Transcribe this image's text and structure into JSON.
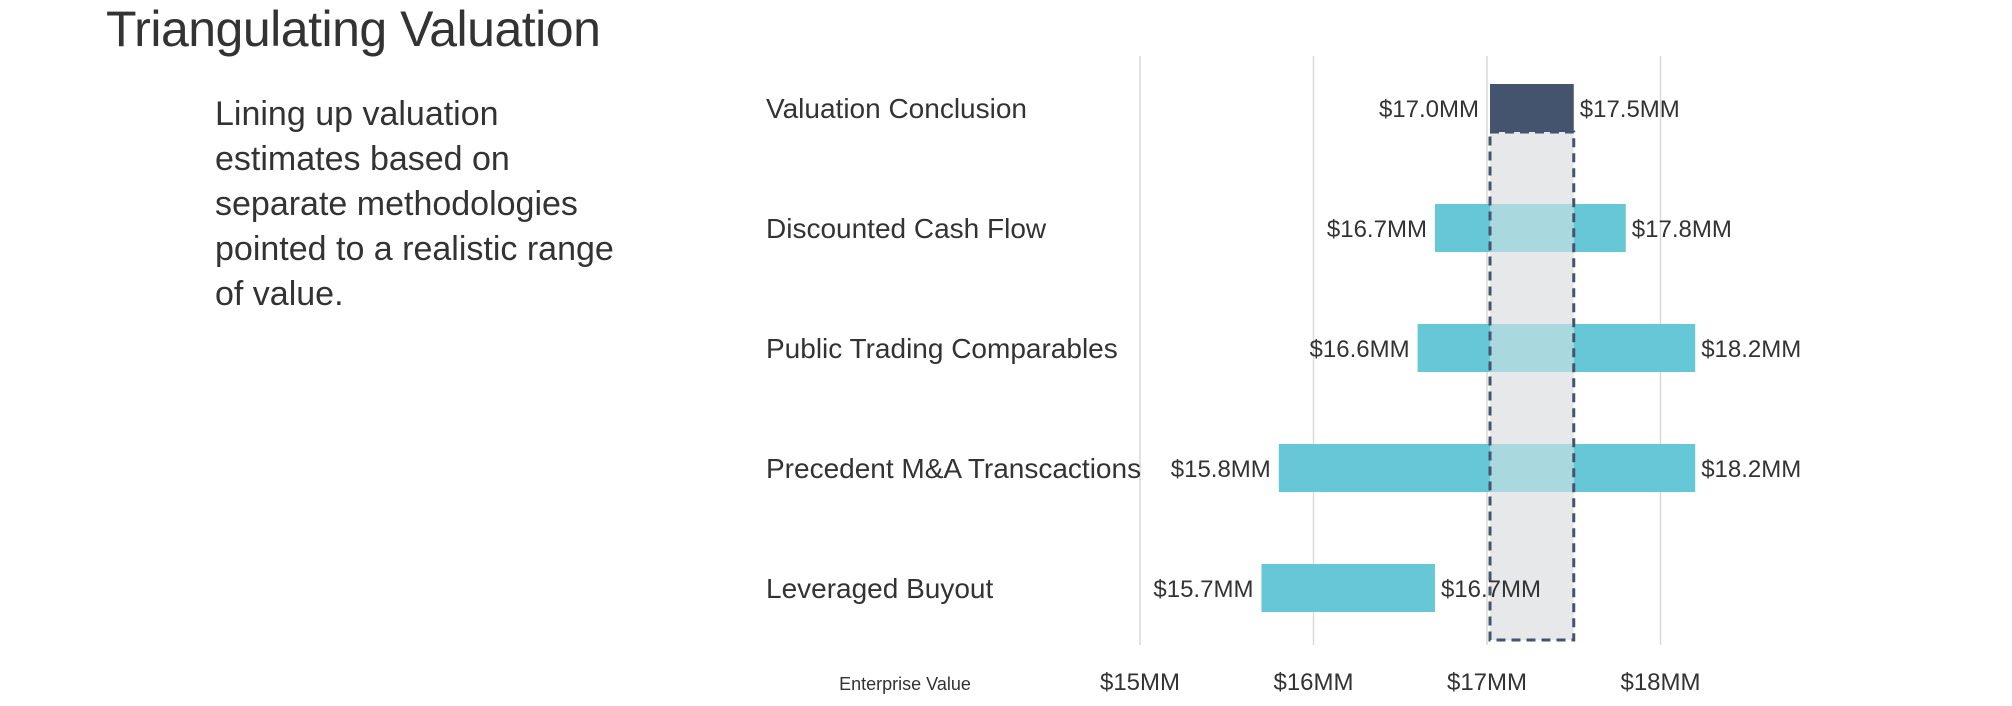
{
  "title": "Triangulating Valuation",
  "description": "Lining up valuation estimates based on separate methodologies pointed to a realistic range of value.",
  "colors": {
    "conclusion_bar": "#44546e",
    "method_bar": "#66c8d6",
    "overlap_bar": "#a9d9df",
    "conclusion_band": "#e7e8ea",
    "band_border": "#44546e",
    "gridline": "#d9d9d9",
    "text": "#333333"
  },
  "chart_data": {
    "type": "bar",
    "orientation": "horizontal-floating-range",
    "categories": [
      "Valuation Conclusion",
      "Discounted Cash Flow",
      "Public Trading Comparables",
      "Precedent M&A Transcactions",
      "Leveraged Buyout"
    ],
    "series": [
      {
        "low": [
          17.0,
          16.7,
          16.6,
          15.8,
          15.7
        ],
        "high": [
          17.5,
          17.8,
          18.2,
          18.2,
          16.7
        ],
        "low_labels": [
          "$17.0MM",
          "$16.7MM",
          "$16.6MM",
          "$15.8MM",
          "$15.7MM"
        ],
        "high_labels": [
          "$17.5MM",
          "$17.8MM",
          "$18.2MM",
          "$18.2MM",
          "$16.7MM"
        ]
      }
    ],
    "xlabel": "Enterprise Value",
    "xticks": [
      15,
      16,
      17,
      18
    ],
    "xtick_labels": [
      "$15MM",
      "$16MM",
      "$17MM",
      "$18MM"
    ],
    "xlim": [
      15,
      18
    ],
    "highlight_range": [
      17.0,
      17.5
    ],
    "grid": true
  }
}
